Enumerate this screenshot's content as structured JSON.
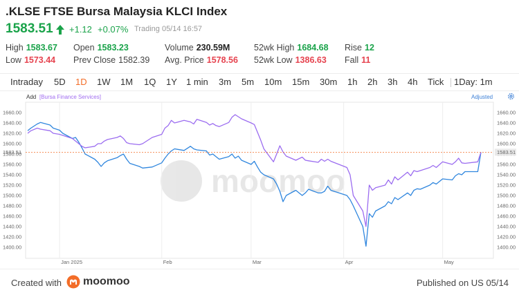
{
  "header": {
    "title": ".KLSE FTSE Bursa Malaysia KLCI Index",
    "price": "1583.51",
    "change": "+1.12",
    "change_pct": "+0.07%",
    "status": "Trading 05/14 16:57",
    "direction_icon": "up-arrow-icon",
    "up_color": "#1aa34a",
    "down_color": "#e6434f"
  },
  "stats": {
    "high_label": "High",
    "high": "1583.67",
    "low_label": "Low",
    "low": "1573.44",
    "open_label": "Open",
    "open": "1583.23",
    "prev_close_label": "Prev Close",
    "prev_close": "1582.39",
    "volume_label": "Volume",
    "volume": "230.59M",
    "avg_price_label": "Avg. Price",
    "avg_price": "1578.56",
    "wk52_high_label": "52wk High",
    "wk52_high": "1684.68",
    "wk52_low_label": "52wk Low",
    "wk52_low": "1386.63",
    "rise_label": "Rise",
    "rise": "12",
    "fall_label": "Fall",
    "fall": "11"
  },
  "tabs": [
    "Intraday",
    "5D",
    "1D",
    "1W",
    "1M",
    "1Q",
    "1Y",
    "1 min",
    "3m",
    "5m",
    "10m",
    "15m",
    "30m",
    "1h",
    "2h",
    "3h",
    "4h",
    "Tick",
    "1Day: 1m"
  ],
  "active_tab": "1D",
  "accent_color": "#f36d28",
  "chart_toolbar": {
    "add_label": "Add",
    "compare_tag": "[Bursa Finance Services]",
    "adjusted_label": "Adjusted",
    "settings_icon": "gear-icon"
  },
  "chart_data": {
    "type": "line",
    "title": "",
    "xlabel": "",
    "ylabel": "",
    "ylim": [
      1380,
      1670
    ],
    "y_ticks": [
      "1660.00",
      "1640.00",
      "1620.00",
      "1600.00",
      "1580.00",
      "1560.00",
      "1540.00",
      "1520.00",
      "1500.00",
      "1480.00",
      "1460.00",
      "1440.00",
      "1420.00",
      "1400.00"
    ],
    "x_ticks": [
      {
        "label": "Jan 2025",
        "x": "2025-01-02"
      },
      {
        "label": "Feb",
        "x": "2025-02-03"
      },
      {
        "label": "Mar",
        "x": "2025-03-03"
      },
      {
        "label": "Apr",
        "x": "2025-04-01"
      },
      {
        "label": "May",
        "x": "2025-05-02"
      }
    ],
    "x": [
      "2024-12-23",
      "2024-12-24",
      "2024-12-26",
      "2024-12-27",
      "2024-12-30",
      "2024-12-31",
      "2025-01-02",
      "2025-01-03",
      "2025-01-06",
      "2025-01-07",
      "2025-01-08",
      "2025-01-09",
      "2025-01-10",
      "2025-01-13",
      "2025-01-14",
      "2025-01-15",
      "2025-01-16",
      "2025-01-17",
      "2025-01-20",
      "2025-01-21",
      "2025-01-22",
      "2025-01-23",
      "2025-01-24",
      "2025-01-27",
      "2025-01-28",
      "2025-01-31",
      "2025-02-03",
      "2025-02-04",
      "2025-02-05",
      "2025-02-06",
      "2025-02-07",
      "2025-02-10",
      "2025-02-12",
      "2025-02-13",
      "2025-02-14",
      "2025-02-17",
      "2025-02-18",
      "2025-02-19",
      "2025-02-20",
      "2025-02-21",
      "2025-02-24",
      "2025-02-25",
      "2025-02-26",
      "2025-02-27",
      "2025-02-28",
      "2025-03-03",
      "2025-03-04",
      "2025-03-05",
      "2025-03-06",
      "2025-03-07",
      "2025-03-10",
      "2025-03-11",
      "2025-03-12",
      "2025-03-13",
      "2025-03-14",
      "2025-03-17",
      "2025-03-19",
      "2025-03-20",
      "2025-03-21",
      "2025-03-24",
      "2025-03-25",
      "2025-03-26",
      "2025-03-27",
      "2025-03-28",
      "2025-04-02",
      "2025-04-03",
      "2025-04-04",
      "2025-04-07",
      "2025-04-08",
      "2025-04-09",
      "2025-04-10",
      "2025-04-11",
      "2025-04-14",
      "2025-04-15",
      "2025-04-16",
      "2025-04-17",
      "2025-04-18",
      "2025-04-21",
      "2025-04-22",
      "2025-04-23",
      "2025-04-24",
      "2025-04-25",
      "2025-04-28",
      "2025-04-29",
      "2025-04-30",
      "2025-05-02",
      "2025-05-05",
      "2025-05-06",
      "2025-05-07",
      "2025-05-08",
      "2025-05-09",
      "2025-05-13",
      "2025-05-14"
    ],
    "last_price_line": 1583.51,
    "last_price_label": "1583.51",
    "series": [
      {
        "color": "#2f86de",
        "values": [
          1625,
          1630,
          1638,
          1641,
          1636,
          1630,
          1626,
          1620,
          1610,
          1612,
          1603,
          1592,
          1580,
          1570,
          1564,
          1556,
          1563,
          1567,
          1573,
          1577,
          1580,
          1570,
          1562,
          1556,
          1553,
          1555,
          1563,
          1572,
          1580,
          1586,
          1590,
          1587,
          1595,
          1590,
          1588,
          1586,
          1578,
          1580,
          1575,
          1570,
          1575,
          1580,
          1572,
          1576,
          1568,
          1560,
          1566,
          1555,
          1545,
          1540,
          1532,
          1522,
          1508,
          1488,
          1500,
          1510,
          1500,
          1505,
          1512,
          1505,
          1505,
          1508,
          1518,
          1510,
          1500,
          1492,
          1480,
          1440,
          1402,
          1465,
          1458,
          1470,
          1480,
          1488,
          1484,
          1496,
          1492,
          1505,
          1500,
          1510,
          1513,
          1512,
          1520,
          1525,
          1522,
          1532,
          1530,
          1538,
          1542,
          1540,
          1546,
          1546,
          1583.51
        ]
      },
      {
        "color": "#9b6cf0",
        "values": [
          1620,
          1625,
          1630,
          1628,
          1625,
          1620,
          1618,
          1616,
          1610,
          1605,
          1600,
          1595,
          1592,
          1595,
          1600,
          1600,
          1605,
          1608,
          1612,
          1615,
          1610,
          1602,
          1600,
          1598,
          1600,
          1612,
          1618,
          1630,
          1635,
          1645,
          1640,
          1645,
          1642,
          1638,
          1647,
          1641,
          1636,
          1639,
          1635,
          1633,
          1641,
          1651,
          1656,
          1652,
          1648,
          1640,
          1637,
          1622,
          1607,
          1590,
          1565,
          1580,
          1596,
          1584,
          1576,
          1568,
          1574,
          1568,
          1567,
          1564,
          1570,
          1566,
          1570,
          1566,
          1554,
          1540,
          1500,
          1470,
          1440,
          1520,
          1510,
          1515,
          1520,
          1530,
          1522,
          1536,
          1530,
          1545,
          1538,
          1548,
          1546,
          1548,
          1554,
          1558,
          1554,
          1565,
          1560,
          1565,
          1572,
          1563,
          1562,
          1565,
          1583.51
        ]
      }
    ]
  },
  "watermark": "moomoo",
  "footer": {
    "created_label": "Created with",
    "brand": "moomoo",
    "logo_icon": "moomoo-logo-icon",
    "published": "Published on US 05/14"
  }
}
